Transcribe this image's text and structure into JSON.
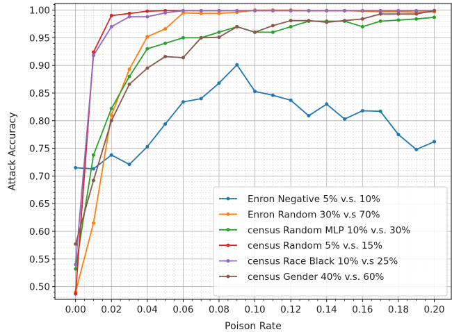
{
  "chart_data": {
    "type": "line",
    "xlabel": "Poison Rate",
    "ylabel": "Attack Accuracy",
    "xlim": [
      -0.0115,
      0.2095
    ],
    "ylim": [
      0.477,
      1.012
    ],
    "x_ticks": [
      "0.00",
      "0.02",
      "0.04",
      "0.06",
      "0.08",
      "0.10",
      "0.12",
      "0.14",
      "0.16",
      "0.18",
      "0.20"
    ],
    "y_ticks": [
      "0.50",
      "0.55",
      "0.60",
      "0.65",
      "0.70",
      "0.75",
      "0.80",
      "0.85",
      "0.90",
      "0.95",
      "1.00"
    ],
    "grid": true,
    "legend_position": "lower-right",
    "x": [
      0.0,
      0.01,
      0.02,
      0.03,
      0.04,
      0.05,
      0.06,
      0.07,
      0.08,
      0.09,
      0.1,
      0.11,
      0.12,
      0.13,
      0.14,
      0.15,
      0.16,
      0.17,
      0.18,
      0.19,
      0.2
    ],
    "series": [
      {
        "name": "Enron Negative 5% v.s. 10%",
        "color": "#1f77b4",
        "values": [
          0.715,
          0.713,
          0.738,
          0.721,
          0.753,
          0.794,
          0.834,
          0.84,
          0.868,
          0.901,
          0.853,
          0.846,
          0.837,
          0.809,
          0.83,
          0.803,
          0.818,
          0.817,
          0.775,
          0.748,
          0.762
        ]
      },
      {
        "name": "Enron Random 30% v.s 70%",
        "color": "#ff7f0e",
        "values": [
          0.49,
          0.615,
          0.81,
          0.893,
          0.952,
          0.966,
          0.995,
          0.994,
          0.994,
          0.996,
          1.0,
          1.0,
          1.0,
          0.999,
          0.999,
          0.999,
          0.998,
          0.997,
          0.997,
          0.996,
          0.997
        ]
      },
      {
        "name": "census Random MLP 10% v.s. 30%",
        "color": "#2ca02c",
        "values": [
          0.532,
          0.738,
          0.822,
          0.88,
          0.93,
          0.94,
          0.95,
          0.95,
          0.96,
          0.97,
          0.96,
          0.96,
          0.97,
          0.98,
          0.98,
          0.98,
          0.97,
          0.98,
          0.982,
          0.984,
          0.987
        ]
      },
      {
        "name": "census Random 5% v.s. 15%",
        "color": "#d62728",
        "values": [
          0.487,
          0.924,
          0.99,
          0.994,
          0.998,
          0.999,
          0.999,
          0.999,
          0.999,
          0.999,
          0.999,
          0.999,
          0.999,
          0.999,
          0.999,
          0.999,
          0.999,
          0.999,
          0.999,
          0.999,
          0.999
        ]
      },
      {
        "name": "census Race Black 10% v.s 25%",
        "color": "#9467bd",
        "values": [
          0.54,
          0.918,
          0.97,
          0.988,
          0.988,
          0.995,
          0.999,
          0.999,
          0.999,
          0.999,
          0.999,
          0.999,
          0.999,
          0.999,
          0.999,
          0.999,
          0.999,
          0.999,
          0.999,
          0.999,
          0.999
        ]
      },
      {
        "name": "census Gender 40% v.s. 60%",
        "color": "#8c564b",
        "values": [
          0.577,
          0.692,
          0.8,
          0.866,
          0.895,
          0.916,
          0.914,
          0.95,
          0.951,
          0.97,
          0.96,
          0.972,
          0.981,
          0.981,
          0.978,
          0.981,
          0.984,
          0.993,
          0.993,
          0.993,
          0.999
        ]
      }
    ]
  }
}
